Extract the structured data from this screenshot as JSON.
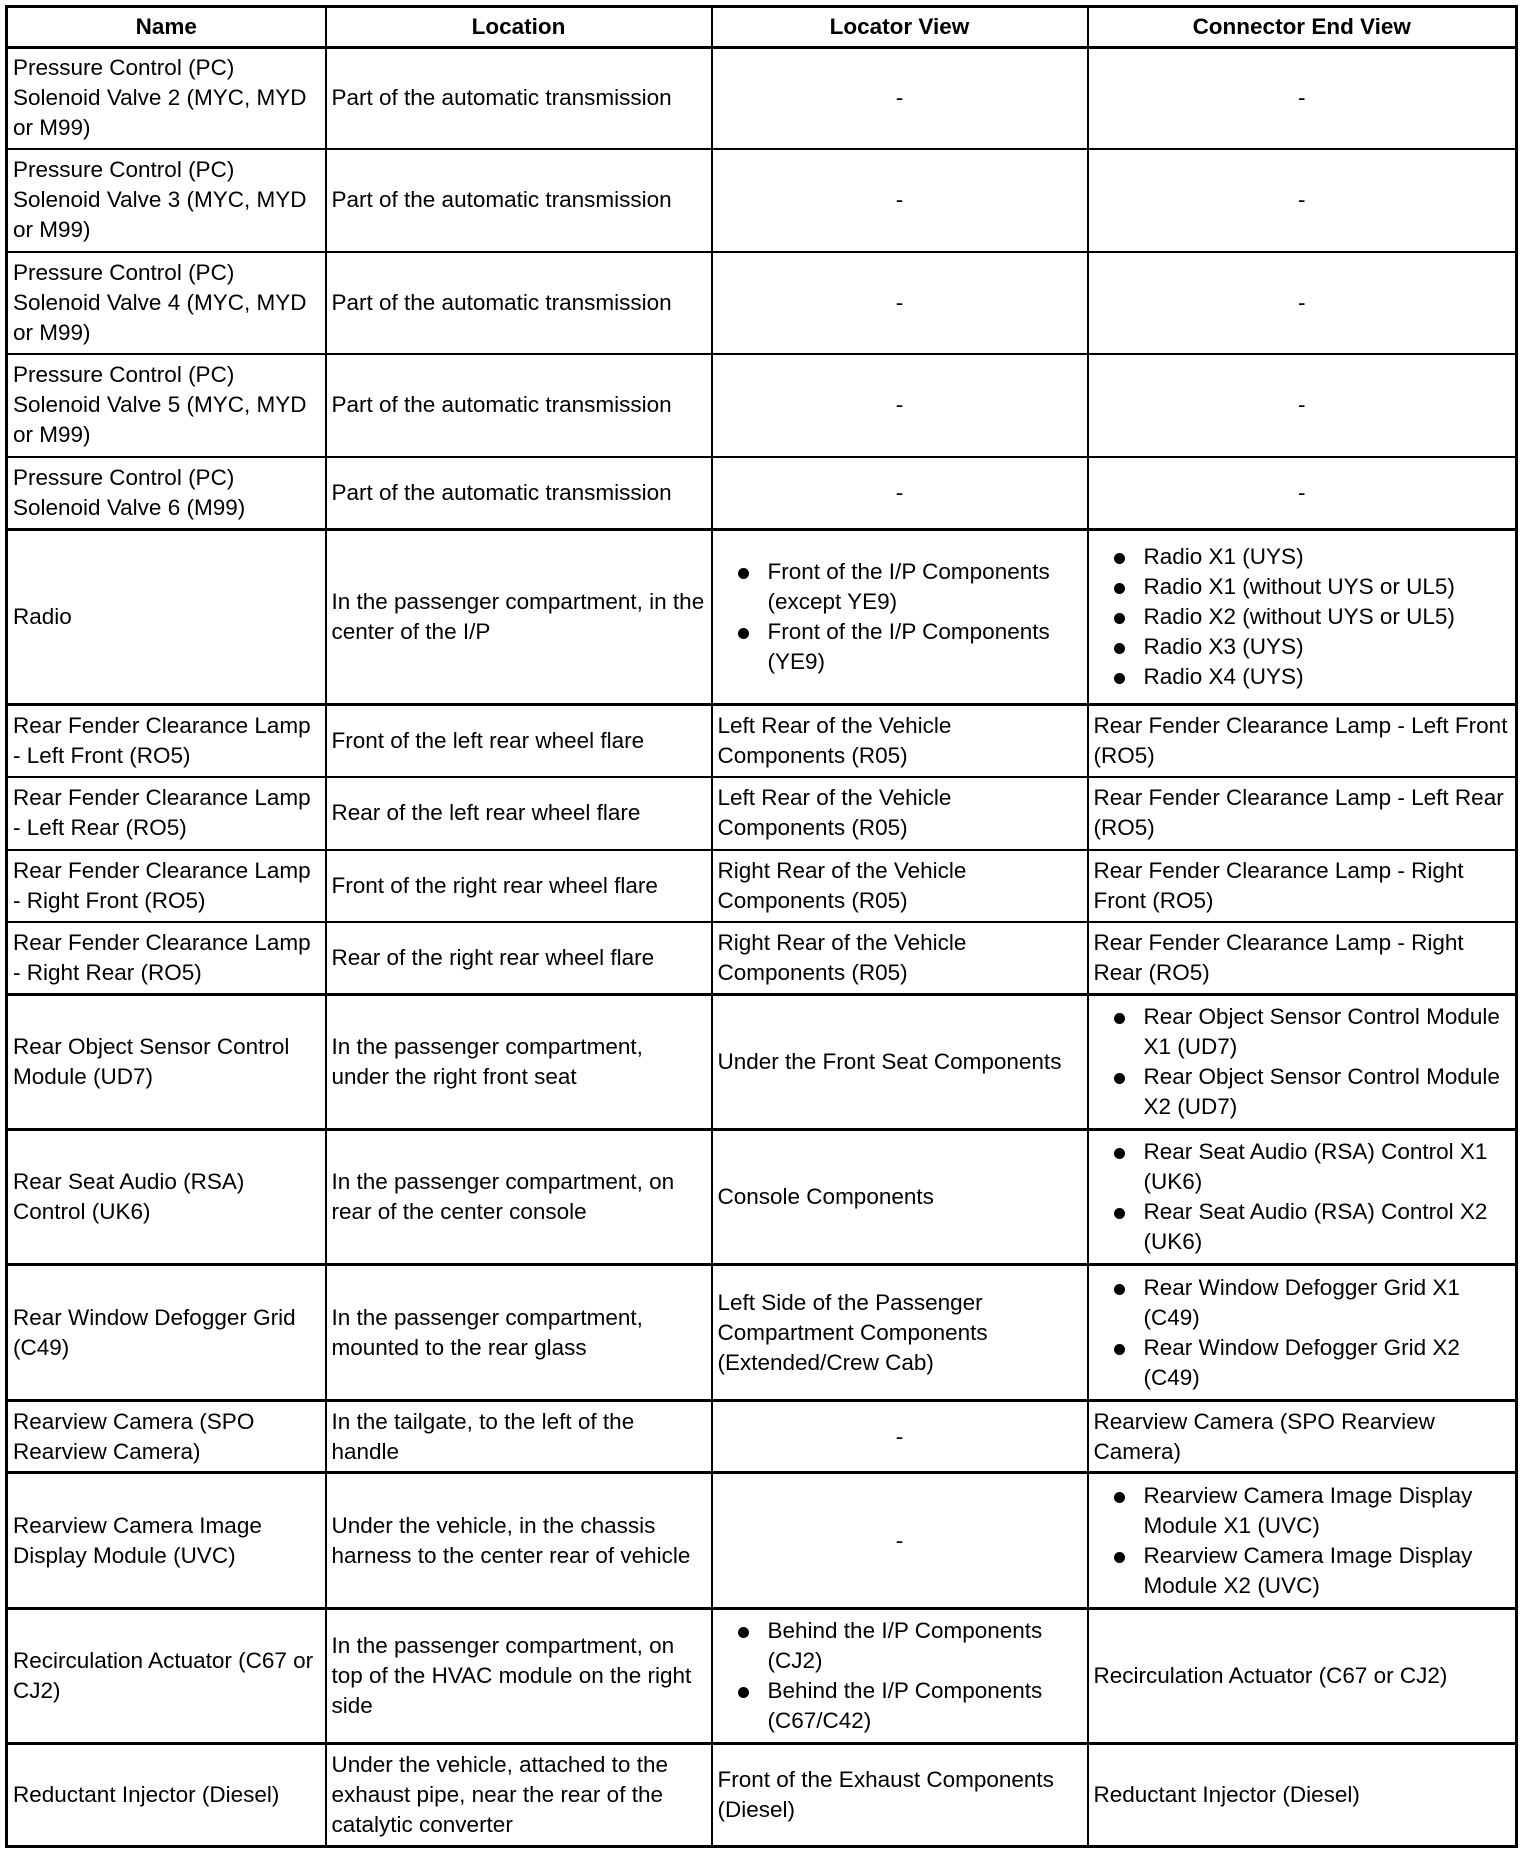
{
  "headers": [
    "Name",
    "Location",
    "Locator View",
    "Connector End View"
  ],
  "rows": [
    {
      "name": "Pressure Control (PC) Solenoid Valve 2 (MYC, MYD or M99)",
      "location": "Part of the automatic transmission",
      "locator": "-",
      "connector": "-"
    },
    {
      "name": "Pressure Control (PC) Solenoid Valve 3 (MYC, MYD or M99)",
      "location": "Part of the automatic transmission",
      "locator": "-",
      "connector": "-"
    },
    {
      "name": "Pressure Control (PC) Solenoid Valve 4 (MYC, MYD or M99)",
      "location": "Part of the automatic transmission",
      "locator": "-",
      "connector": "-"
    },
    {
      "name": "Pressure Control (PC) Solenoid Valve 5 (MYC, MYD or M99)",
      "location": "Part of the automatic transmission",
      "locator": "-",
      "connector": "-"
    },
    {
      "name": "Pressure Control (PC) Solenoid Valve 6 (M99)",
      "location": "Part of the automatic transmission",
      "locator": "-",
      "connector": "-"
    },
    {
      "name": "Radio",
      "location": "In the passenger compartment, in the center of the I/P",
      "locator": [
        "Front of the I/P Components (except YE9)",
        "Front of the I/P Components (YE9)"
      ],
      "connector": [
        "Radio X1 (UYS)",
        "Radio X1 (without UYS or UL5)",
        "Radio X2 (without UYS or UL5)",
        "Radio X3 (UYS)",
        "Radio X4 (UYS)"
      ]
    },
    {
      "name": "Rear Fender Clearance Lamp - Left Front (RO5)",
      "location": "Front of the left rear wheel flare",
      "locator": "Left Rear of the Vehicle Components (R05)",
      "connector": "Rear Fender Clearance Lamp - Left Front (RO5)"
    },
    {
      "name": "Rear Fender Clearance Lamp - Left Rear (RO5)",
      "location": "Rear of the left rear wheel flare",
      "locator": "Left Rear of the Vehicle Components (R05)",
      "connector": "Rear Fender Clearance Lamp - Left Rear (RO5)"
    },
    {
      "name": "Rear Fender Clearance Lamp - Right Front (RO5)",
      "location": "Front of the right rear wheel flare",
      "locator": "Right Rear of the Vehicle Components (R05)",
      "connector": "Rear Fender Clearance Lamp - Right Front (RO5)"
    },
    {
      "name": "Rear Fender Clearance Lamp - Right Rear (RO5)",
      "location": "Rear of the right rear wheel flare",
      "locator": "Right Rear of the Vehicle Components (R05)",
      "connector": "Rear Fender Clearance Lamp - Right Rear (RO5)"
    },
    {
      "name": "Rear Object Sensor Control Module (UD7)",
      "location": "In the passenger compartment, under the right front seat",
      "locator": "Under the Front Seat Components",
      "connector": [
        "Rear Object Sensor Control Module X1 (UD7)",
        "Rear Object Sensor Control Module X2 (UD7)"
      ]
    },
    {
      "name": "Rear Seat Audio (RSA) Control (UK6)",
      "location": "In the passenger compartment, on rear of the center console",
      "locator": "Console Components",
      "connector": [
        "Rear Seat Audio (RSA) Control X1 (UK6)",
        "Rear Seat Audio (RSA) Control X2 (UK6)"
      ]
    },
    {
      "name": "Rear Window Defogger Grid (C49)",
      "location": "In the passenger compartment, mounted to the rear glass",
      "locator": "Left Side of the Passenger Compartment Components (Extended/Crew Cab)",
      "connector": [
        "Rear Window Defogger Grid X1 (C49)",
        "Rear Window Defogger Grid X2 (C49)"
      ]
    },
    {
      "name": "Rearview Camera (SPO Rearview Camera)",
      "location": "In the tailgate, to the left of the handle",
      "locator": "-",
      "connector": "Rearview Camera (SPO Rearview Camera)"
    },
    {
      "name": "Rearview Camera Image Display Module (UVC)",
      "location": "Under the vehicle, in the chassis harness to the center rear of vehicle",
      "locator": "-",
      "connector": [
        "Rearview Camera Image Display Module X1 (UVC)",
        "Rearview Camera Image Display Module X2 (UVC)"
      ]
    },
    {
      "name": "Recirculation Actuator (C67 or CJ2)",
      "location": "In the passenger compartment, on top of the HVAC module on the right side",
      "locator": [
        "Behind the I/P Components (CJ2)",
        "Behind the I/P Components (C67/C42)"
      ],
      "connector": "Recirculation Actuator (C67 or CJ2)"
    },
    {
      "name": "Reductant Injector (Diesel)",
      "location": "Under the vehicle, attached to the exhaust pipe, near the rear of the catalytic converter",
      "locator": "Front of the Exhaust Components (Diesel)",
      "connector": "Reductant Injector (Diesel)"
    }
  ]
}
